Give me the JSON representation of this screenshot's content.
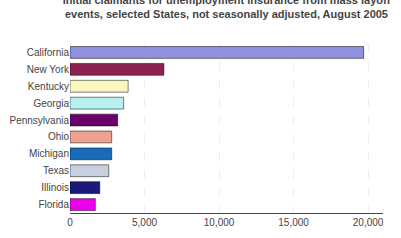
{
  "chart_data": {
    "type": "bar",
    "orientation": "horizontal",
    "title": "Initial claimants for unemployment insurance from mass layoff\nevents, selected States, not seasonally adjusted, August 2005",
    "categories": [
      "California",
      "New York",
      "Kentucky",
      "Georgia",
      "Pennsylvania",
      "Ohio",
      "Michigan",
      "Texas",
      "Illinois",
      "Florida"
    ],
    "values": [
      19700,
      6300,
      3900,
      3600,
      3200,
      2800,
      2800,
      2600,
      2000,
      1700
    ],
    "colors": [
      "#9090e0",
      "#8b2252",
      "#f8f8c0",
      "#b8f0f0",
      "#6b006b",
      "#f0a090",
      "#1a6aba",
      "#c8d0e0",
      "#1a1a7a",
      "#ee00ee"
    ],
    "xlim": [
      0,
      21000
    ],
    "xticks": [
      0,
      {
        "value": 5000,
        "label": "5,000"
      },
      {
        "value": 10000,
        "label": "10,000"
      },
      {
        "value": 15000,
        "label": "15,000"
      },
      {
        "value": 20000,
        "label": "20,000"
      }
    ],
    "grid": true
  }
}
